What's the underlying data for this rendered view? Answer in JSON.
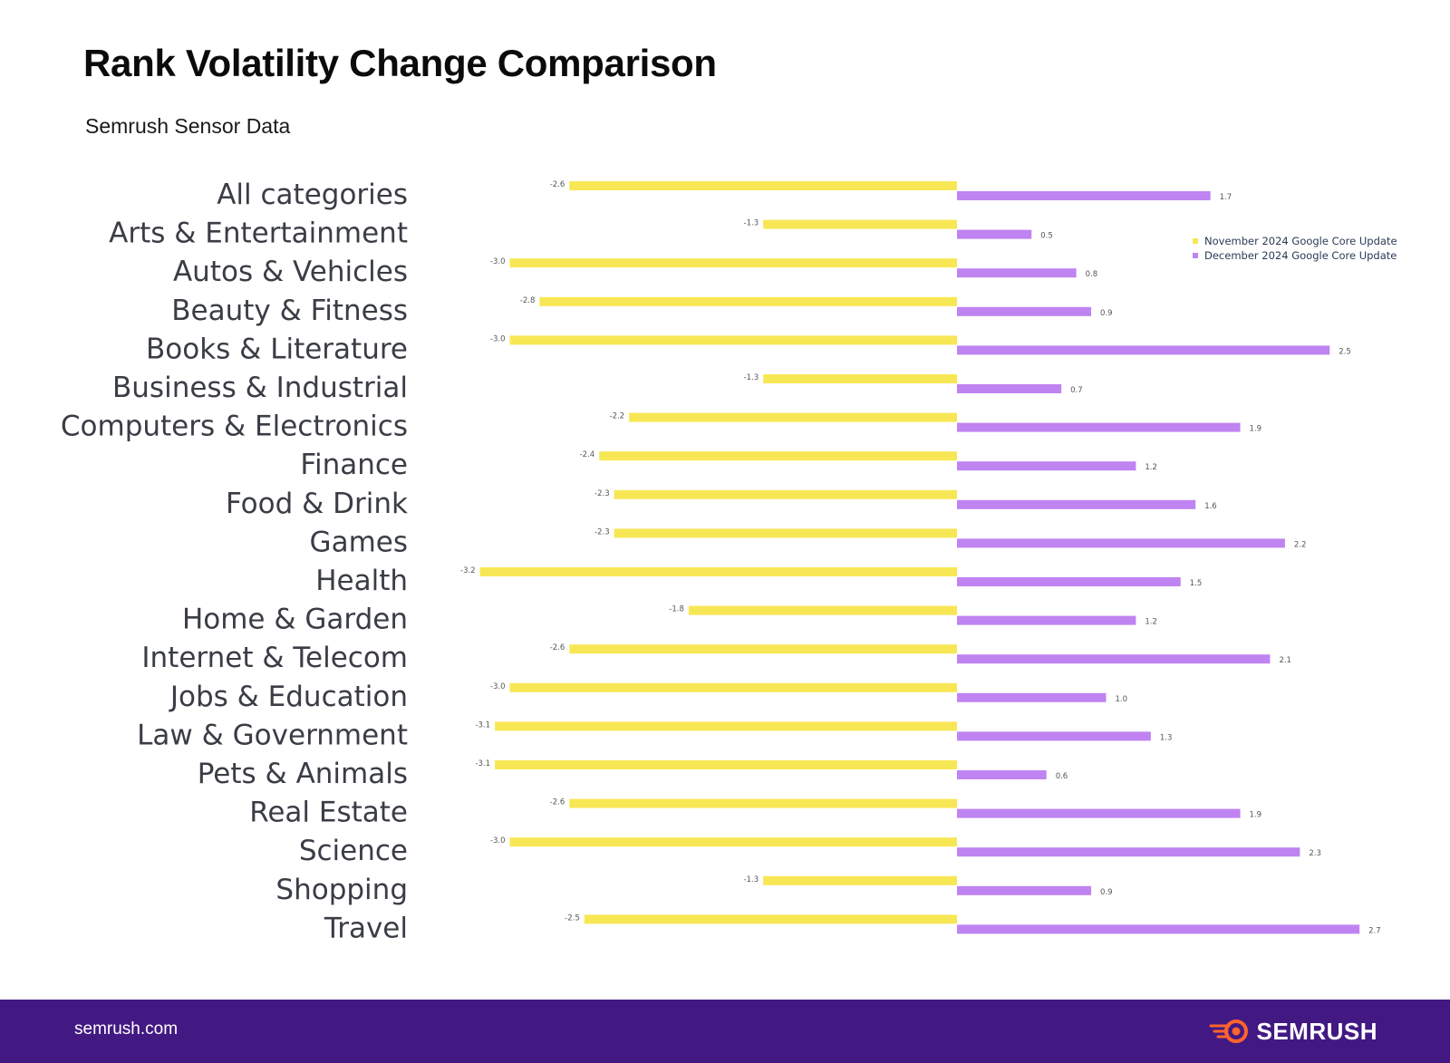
{
  "header": {
    "title": "Rank Volatility Change Comparison",
    "subtitle": "Semrush Sensor Data"
  },
  "colors": {
    "november": "#f8e755",
    "december": "#bf83f2",
    "footer": "#421983",
    "brand_accent": "#ff642d"
  },
  "legend": {
    "items": [
      {
        "label": "November 2024 Google Core Update",
        "color": "#f8e755"
      },
      {
        "label": "December 2024 Google Core Update",
        "color": "#bf83f2"
      }
    ]
  },
  "chart_data": {
    "type": "bar",
    "orientation": "horizontal",
    "title": "Rank Volatility Change Comparison",
    "subtitle": "Semrush Sensor Data",
    "categories": [
      "All categories",
      "Arts & Entertainment",
      "Autos & Vehicles",
      "Beauty & Fitness",
      "Books & Literature",
      "Business & Industrial",
      "Computers & Electronics",
      "Finance",
      "Food & Drink",
      "Games",
      "Health",
      "Home & Garden",
      "Internet & Telecom",
      "Jobs & Education",
      "Law & Government",
      "Pets & Animals",
      "Real Estate",
      "Science",
      "Shopping",
      "Travel"
    ],
    "series": [
      {
        "name": "November 2024 Google Core Update",
        "values": [
          -2.6,
          -1.3,
          -3.0,
          -2.8,
          -3.0,
          -1.3,
          -2.2,
          -2.4,
          -2.3,
          -2.3,
          -3.2,
          -1.8,
          -2.6,
          -3.0,
          -3.1,
          -3.1,
          -2.6,
          -3.0,
          -1.3,
          -2.5
        ],
        "labels": [
          "-2.6",
          "-1.3",
          "-3.0",
          "-2.8",
          "-3.0",
          "-1.3",
          "-2.2",
          "-2.4",
          "-2.3",
          "-2.3",
          "-3.2",
          "-1.8",
          "-2.6",
          "-3.0",
          "-3.1",
          "-3.1",
          "-2.6",
          "-3.0",
          "-1.3",
          "-2.5"
        ]
      },
      {
        "name": "December 2024 Google Core Update",
        "values": [
          1.7,
          0.5,
          0.8,
          0.9,
          2.5,
          0.7,
          1.9,
          1.2,
          1.6,
          2.2,
          1.5,
          1.2,
          2.1,
          1.0,
          1.3,
          0.6,
          1.9,
          2.3,
          0.9,
          2.7
        ],
        "labels": [
          "1.7",
          "0.5",
          "0.8",
          "0.9",
          "2.5",
          "0.7",
          "1.9",
          "1.2",
          "1.6",
          "2.2",
          "1.5",
          "1.2",
          "2.1",
          "1.0",
          "1.3",
          "0.6",
          "1.9",
          "2.3",
          "0.9",
          "2.7"
        ]
      }
    ],
    "xlim": [
      -3.2,
      2.7
    ],
    "xlabel": "",
    "ylabel": "",
    "grid": false,
    "legend_position": "top-right"
  },
  "footer": {
    "url": "semrush.com",
    "brand": "SEMRUSH"
  }
}
